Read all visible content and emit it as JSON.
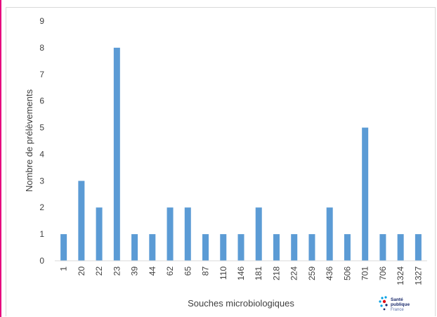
{
  "colors": {
    "bar": "#5b9bd5",
    "accent_border": "#e6007e",
    "text": "#404040",
    "logo_dark": "#1a2a6c",
    "logo_red": "#e30613",
    "logo_blue": "#009fe3"
  },
  "logo": {
    "line1": "Santé",
    "line2": "publique",
    "line3": "France"
  },
  "chart_data": {
    "type": "bar",
    "title": "",
    "xlabel": "Souches microbiologiques",
    "ylabel": "Nombre de prélèvements",
    "ylim": [
      0,
      9
    ],
    "yticks": [
      "0",
      "1",
      "2",
      "3",
      "4",
      "5",
      "6",
      "7",
      "8",
      "9"
    ],
    "grid": false,
    "categories": [
      "1",
      "20",
      "22",
      "23",
      "39",
      "44",
      "62",
      "65",
      "87",
      "110",
      "146",
      "181",
      "218",
      "224",
      "259",
      "436",
      "506",
      "701",
      "706",
      "1324",
      "1327"
    ],
    "values": [
      1,
      3,
      2,
      8,
      1,
      1,
      2,
      2,
      1,
      1,
      1,
      2,
      1,
      1,
      1,
      2,
      1,
      5,
      1,
      1,
      1
    ]
  }
}
